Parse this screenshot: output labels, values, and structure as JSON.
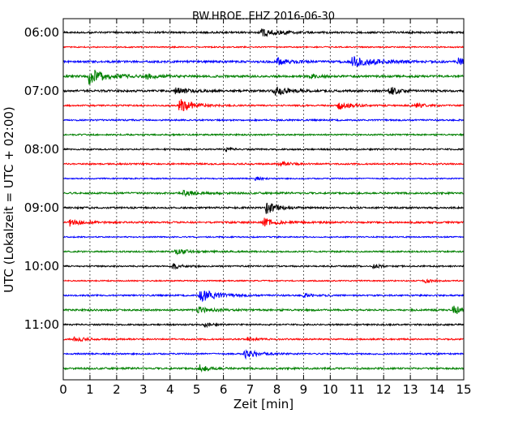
{
  "chart_data": {
    "type": "line",
    "title": "BW.HROE..EHZ 2016-06-30",
    "xlabel": "Zeit  [min]",
    "ylabel": "UTC (Lokalzeit = UTC + 02:00)",
    "xlim": [
      0,
      15
    ],
    "x_ticks": [
      0,
      1,
      2,
      3,
      4,
      5,
      6,
      7,
      8,
      9,
      10,
      11,
      12,
      13,
      14,
      15
    ],
    "x_tick_labels": [
      "0",
      "1",
      "2",
      "3",
      "4",
      "5",
      "6",
      "7",
      "8",
      "9",
      "10",
      "11",
      "12",
      "13",
      "14",
      "15"
    ],
    "grid": {
      "x": true,
      "y": false,
      "style": "dotted"
    },
    "y_tick_labels": [
      "06:00",
      "07:00",
      "08:00",
      "09:00",
      "10:00",
      "11:00"
    ],
    "y_tick_rows": [
      0,
      4,
      8,
      12,
      16,
      20
    ],
    "colors": {
      "black": "#000000",
      "red": "#ff0000",
      "blue": "#0000ff",
      "green": "#008000"
    },
    "traces": [
      {
        "start": "06:00",
        "color": "#000000",
        "noise": 0.12,
        "events": [
          {
            "t": 7.4,
            "amp": 0.55,
            "dur": 0.6
          }
        ]
      },
      {
        "start": "06:15",
        "color": "#ff0000",
        "noise": 0.08,
        "events": []
      },
      {
        "start": "06:30",
        "color": "#0000ff",
        "noise": 0.14,
        "events": [
          {
            "t": 8.0,
            "amp": 0.5,
            "dur": 0.4
          },
          {
            "t": 10.8,
            "amp": 0.7,
            "dur": 0.9
          },
          {
            "t": 14.8,
            "amp": 0.45,
            "dur": 0.3
          }
        ]
      },
      {
        "start": "06:45",
        "color": "#008000",
        "noise": 0.14,
        "events": [
          {
            "t": 0.95,
            "amp": 1.1,
            "dur": 0.6
          },
          {
            "t": 3.1,
            "amp": 0.35,
            "dur": 0.4
          },
          {
            "t": 9.2,
            "amp": 0.3,
            "dur": 0.3
          }
        ]
      },
      {
        "start": "07:00",
        "color": "#000000",
        "noise": 0.14,
        "events": [
          {
            "t": 4.2,
            "amp": 0.45,
            "dur": 0.4
          },
          {
            "t": 7.9,
            "amp": 0.6,
            "dur": 0.5
          },
          {
            "t": 12.2,
            "amp": 0.65,
            "dur": 0.3
          }
        ]
      },
      {
        "start": "07:15",
        "color": "#ff0000",
        "noise": 0.1,
        "events": [
          {
            "t": 4.35,
            "amp": 0.9,
            "dur": 0.5
          },
          {
            "t": 10.3,
            "amp": 0.45,
            "dur": 0.5
          },
          {
            "t": 13.2,
            "amp": 0.35,
            "dur": 0.3
          }
        ]
      },
      {
        "start": "07:30",
        "color": "#0000ff",
        "noise": 0.1,
        "events": []
      },
      {
        "start": "07:45",
        "color": "#008000",
        "noise": 0.1,
        "events": []
      },
      {
        "start": "08:00",
        "color": "#000000",
        "noise": 0.1,
        "events": [
          {
            "t": 6.1,
            "amp": 0.25,
            "dur": 0.2
          }
        ]
      },
      {
        "start": "08:15",
        "color": "#ff0000",
        "noise": 0.1,
        "events": [
          {
            "t": 8.1,
            "amp": 0.3,
            "dur": 0.4
          }
        ]
      },
      {
        "start": "08:30",
        "color": "#0000ff",
        "noise": 0.08,
        "events": [
          {
            "t": 7.2,
            "amp": 0.25,
            "dur": 0.2
          }
        ]
      },
      {
        "start": "08:45",
        "color": "#008000",
        "noise": 0.12,
        "events": [
          {
            "t": 4.5,
            "amp": 0.3,
            "dur": 0.6
          }
        ]
      },
      {
        "start": "09:00",
        "color": "#000000",
        "noise": 0.12,
        "events": [
          {
            "t": 7.6,
            "amp": 0.8,
            "dur": 0.4
          }
        ]
      },
      {
        "start": "09:15",
        "color": "#ff0000",
        "noise": 0.12,
        "events": [
          {
            "t": 0.25,
            "amp": 0.5,
            "dur": 0.4
          },
          {
            "t": 7.5,
            "amp": 0.55,
            "dur": 0.4
          }
        ]
      },
      {
        "start": "09:30",
        "color": "#0000ff",
        "noise": 0.08,
        "events": []
      },
      {
        "start": "09:45",
        "color": "#008000",
        "noise": 0.1,
        "events": [
          {
            "t": 4.2,
            "amp": 0.3,
            "dur": 0.6
          }
        ]
      },
      {
        "start": "10:00",
        "color": "#000000",
        "noise": 0.1,
        "events": [
          {
            "t": 4.1,
            "amp": 0.4,
            "dur": 0.3
          },
          {
            "t": 11.6,
            "amp": 0.35,
            "dur": 0.2
          }
        ]
      },
      {
        "start": "10:15",
        "color": "#ff0000",
        "noise": 0.08,
        "events": [
          {
            "t": 13.5,
            "amp": 0.3,
            "dur": 0.3
          }
        ]
      },
      {
        "start": "10:30",
        "color": "#0000ff",
        "noise": 0.1,
        "events": [
          {
            "t": 5.1,
            "amp": 0.9,
            "dur": 0.6
          },
          {
            "t": 9.0,
            "amp": 0.25,
            "dur": 0.4
          }
        ]
      },
      {
        "start": "10:45",
        "color": "#008000",
        "noise": 0.12,
        "events": [
          {
            "t": 5.0,
            "amp": 0.4,
            "dur": 0.5
          },
          {
            "t": 14.6,
            "amp": 0.65,
            "dur": 0.4
          }
        ]
      },
      {
        "start": "11:00",
        "color": "#000000",
        "noise": 0.1,
        "events": [
          {
            "t": 5.3,
            "amp": 0.3,
            "dur": 0.2
          }
        ]
      },
      {
        "start": "11:15",
        "color": "#ff0000",
        "noise": 0.1,
        "events": [
          {
            "t": 0.4,
            "amp": 0.4,
            "dur": 0.3
          },
          {
            "t": 6.9,
            "amp": 0.25,
            "dur": 0.3
          }
        ]
      },
      {
        "start": "11:30",
        "color": "#0000ff",
        "noise": 0.1,
        "events": [
          {
            "t": 6.8,
            "amp": 0.55,
            "dur": 0.5
          }
        ]
      },
      {
        "start": "11:45",
        "color": "#008000",
        "noise": 0.12,
        "events": [
          {
            "t": 5.1,
            "amp": 0.55,
            "dur": 0.3
          }
        ]
      }
    ]
  }
}
